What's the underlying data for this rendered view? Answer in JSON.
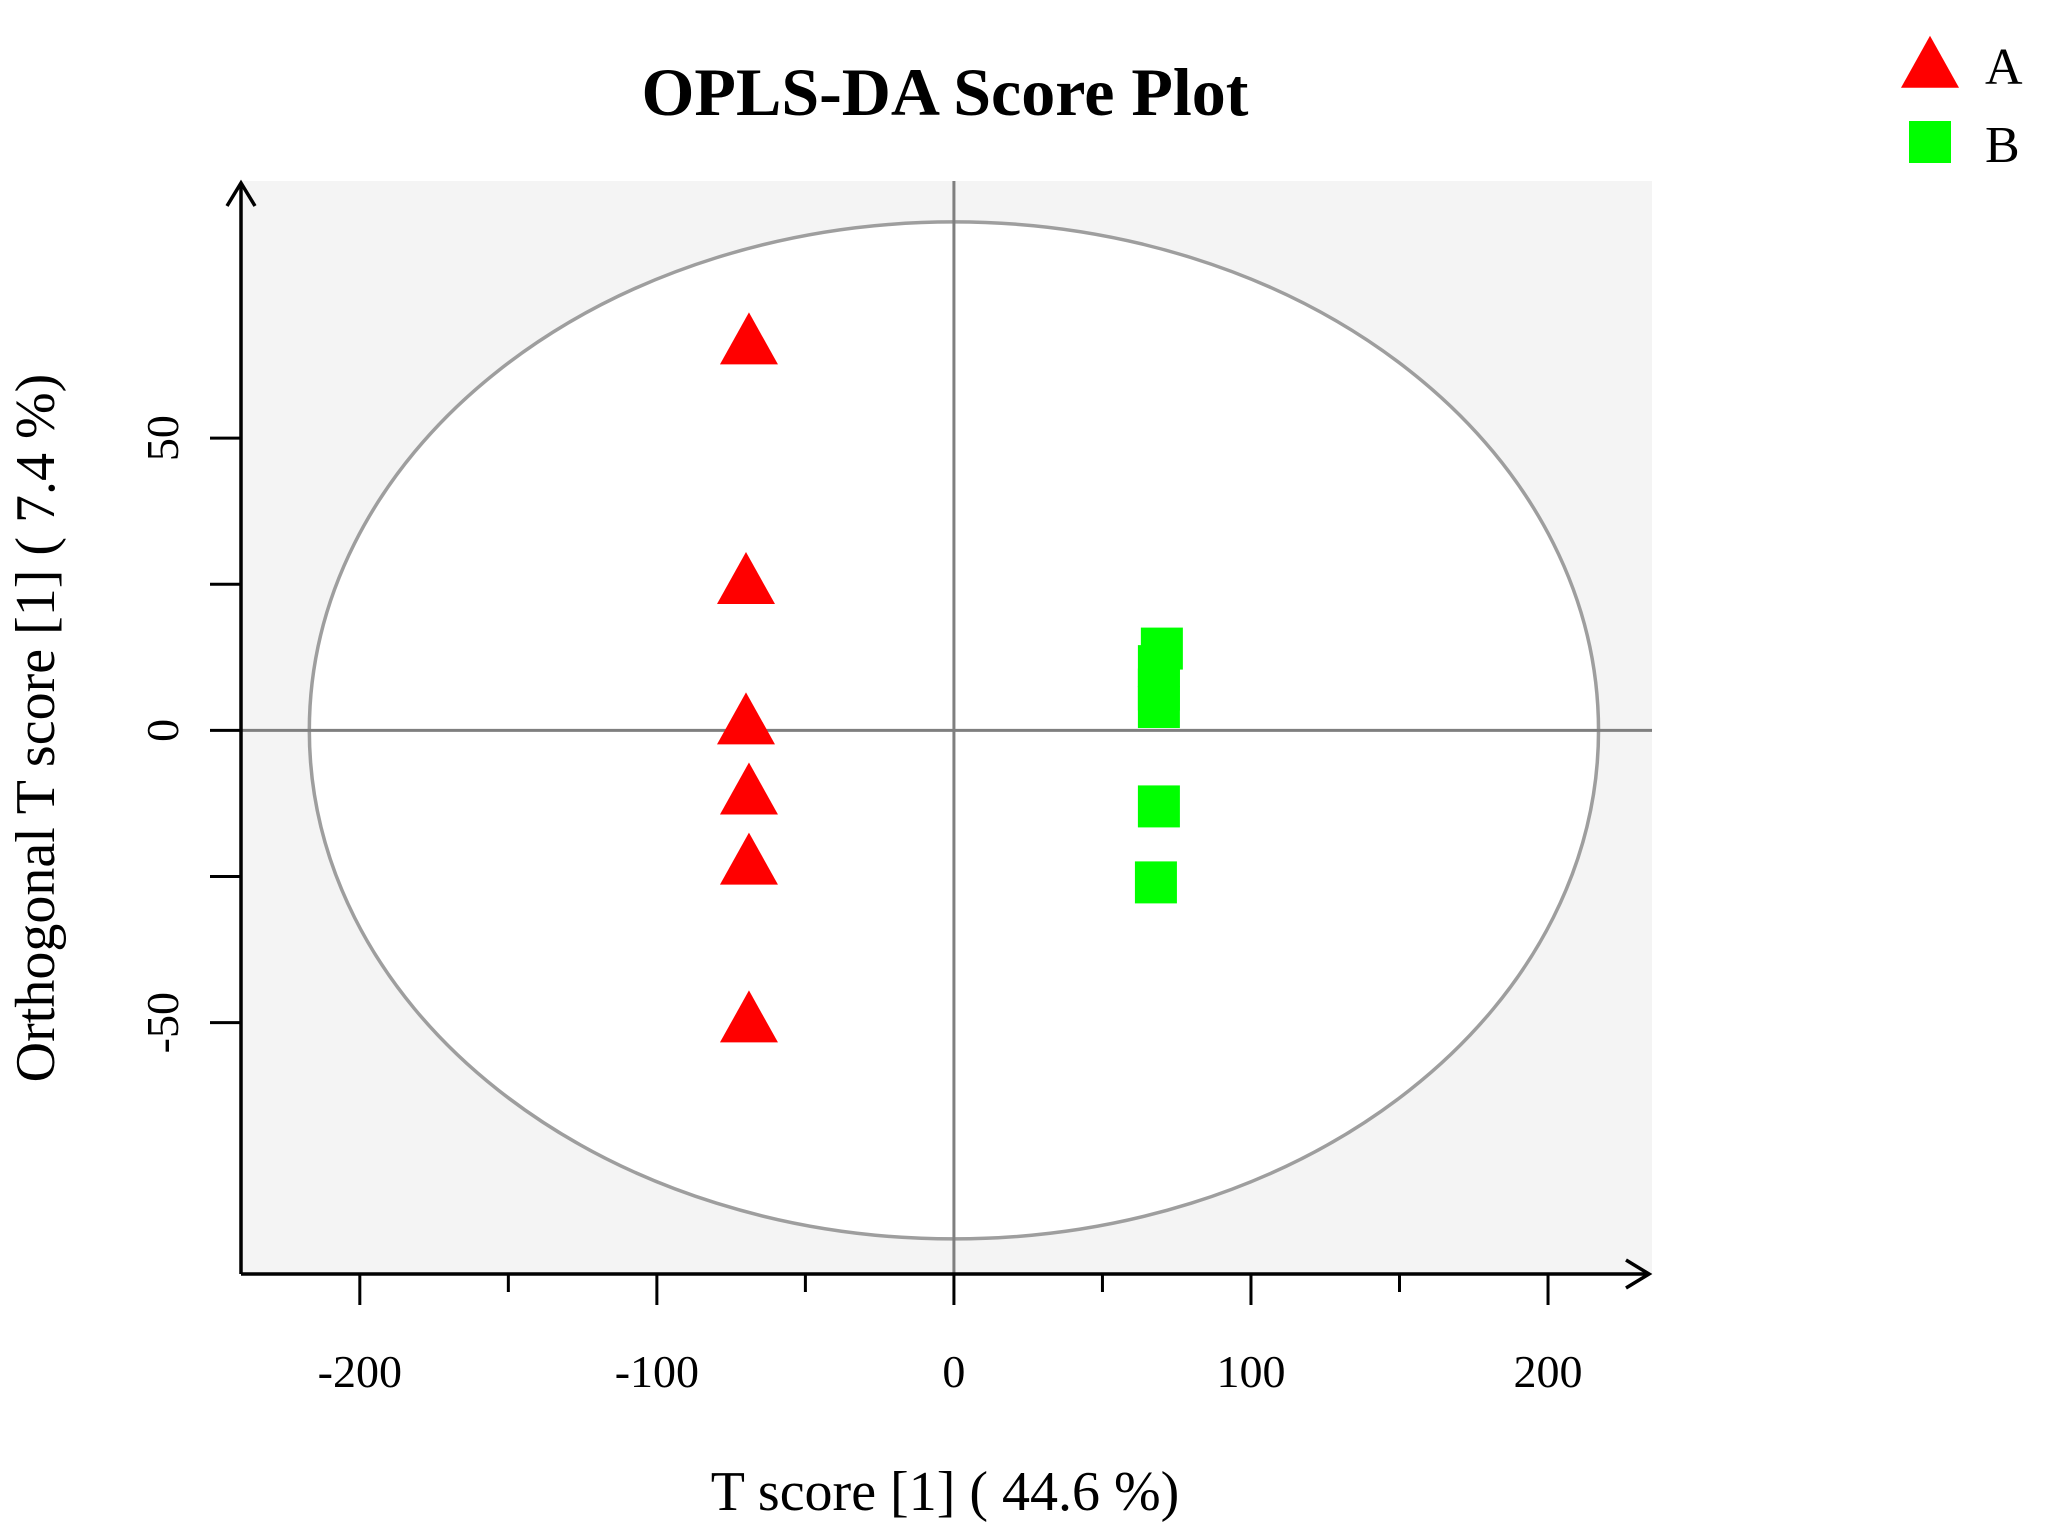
{
  "chart_data": {
    "type": "scatter",
    "title": "OPLS-DA Score Plot",
    "xlabel": "T score [1] ( 44.6 %)",
    "ylabel": "Orthogonal T score [1] ( 7.4 %)",
    "xlim": [
      -240,
      235
    ],
    "ylim": [
      -93,
      94
    ],
    "x_ticks": [
      -200,
      -150,
      -100,
      -50,
      0,
      50,
      100,
      150,
      200
    ],
    "x_tick_labels": [
      "-200",
      "",
      "-100",
      "",
      "0",
      "",
      "100",
      "",
      "200"
    ],
    "y_ticks": [
      -50,
      -25,
      0,
      25,
      50
    ],
    "y_tick_labels": [
      "-50",
      "",
      "0",
      "",
      "50"
    ],
    "grid": false,
    "background_color": "#f4f4f4",
    "reference_lines": {
      "x": 0,
      "y": 0,
      "color": "#7f7f7f"
    },
    "ellipse": {
      "center": [
        0,
        0
      ],
      "semi_x": 217,
      "semi_y": 87,
      "color": "#9e9e9e"
    },
    "legend_position": "top-right",
    "series": [
      {
        "name": "A",
        "marker": "triangle",
        "color": "#ff0000",
        "points": [
          {
            "x": -69,
            "y": 66
          },
          {
            "x": -70,
            "y": 25
          },
          {
            "x": -70,
            "y": 1
          },
          {
            "x": -69,
            "y": -11
          },
          {
            "x": -69,
            "y": -23
          },
          {
            "x": -69,
            "y": -50
          }
        ]
      },
      {
        "name": "B",
        "marker": "square",
        "color": "#00ff00",
        "points": [
          {
            "x": 70,
            "y": 14
          },
          {
            "x": 69,
            "y": 11
          },
          {
            "x": 69,
            "y": 7
          },
          {
            "x": 69,
            "y": 4
          },
          {
            "x": 69,
            "y": -13
          },
          {
            "x": 68,
            "y": -26
          }
        ]
      }
    ]
  }
}
